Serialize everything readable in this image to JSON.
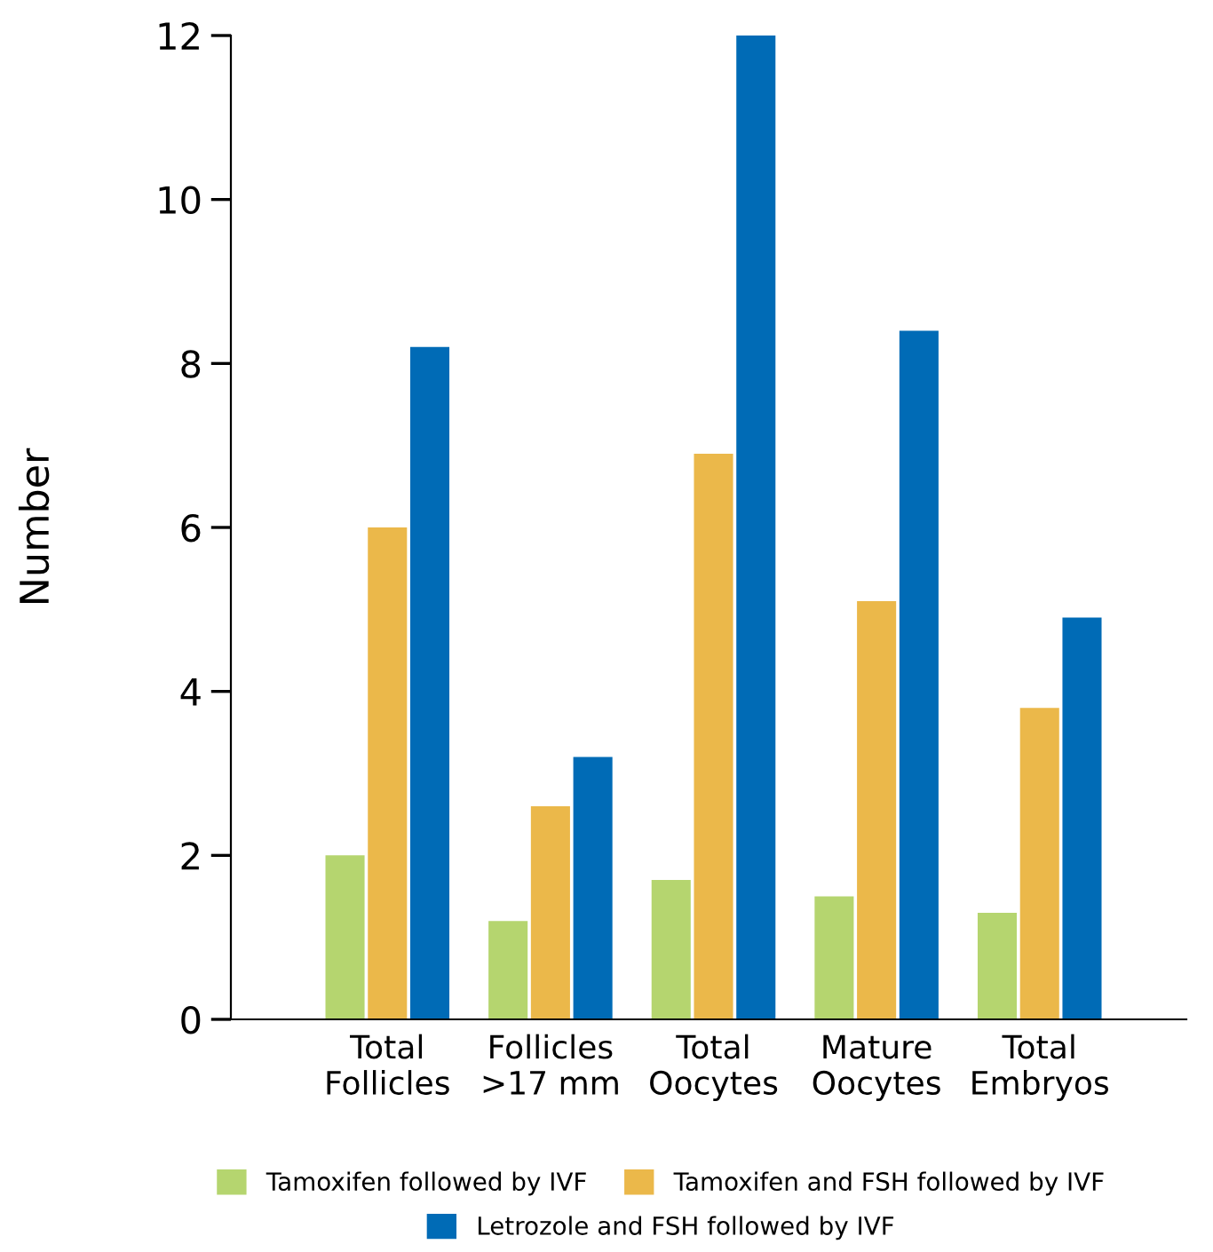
{
  "chart_data": {
    "type": "bar",
    "ylabel": "Number",
    "categories": [
      "Total\nFollicles",
      "Follicles\n>17 mm",
      "Total\nOocytes",
      "Mature\nOocytes",
      "Total\nEmbryos"
    ],
    "series": [
      {
        "name": "Tamoxifen followed by IVF",
        "color": "#b5d56f",
        "values": [
          2.0,
          1.2,
          1.7,
          1.5,
          1.3
        ]
      },
      {
        "name": "Tamoxifen and FSH followed by IVF",
        "color": "#ebb84a",
        "values": [
          6.0,
          2.6,
          6.9,
          5.1,
          3.8
        ]
      },
      {
        "name": "Letrozole and FSH followed by IVF",
        "color": "#006bb6",
        "values": [
          8.2,
          3.2,
          12.0,
          8.4,
          4.9
        ]
      }
    ],
    "ylim": [
      0,
      12
    ],
    "yticks": [
      0,
      2,
      4,
      6,
      8,
      10,
      12
    ],
    "grid": false,
    "legend": "bottom"
  }
}
